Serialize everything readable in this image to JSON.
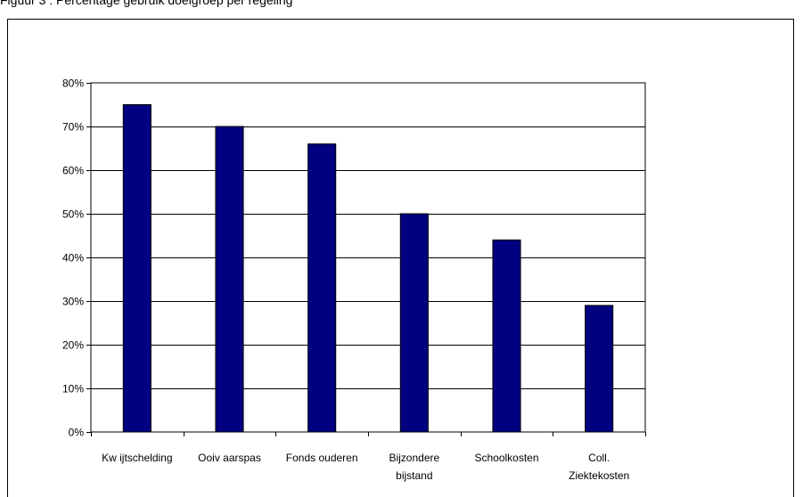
{
  "caption": "Figuur 3 : Percentage gebruik doelgroep per regeling",
  "chart_data": {
    "type": "bar",
    "title": "",
    "xlabel": "",
    "ylabel": "",
    "categories": [
      [
        "Kw ijtschelding"
      ],
      [
        "Ooiv aarspas"
      ],
      [
        "Fonds ouderen"
      ],
      [
        "Bijzondere",
        "bijstand"
      ],
      [
        "Schoolkosten"
      ],
      [
        "Coll.",
        "Ziektekosten"
      ]
    ],
    "values": [
      75,
      70,
      66,
      50,
      44,
      29
    ],
    "ylim": [
      0,
      80
    ],
    "yticks": [
      "0%",
      "10%",
      "20%",
      "30%",
      "40%",
      "50%",
      "60%",
      "70%",
      "80%"
    ],
    "grid": true,
    "legend": "none",
    "colors": {
      "bar_fill": "#000080",
      "bar_stroke": "#000000",
      "gridline": "#000000",
      "frame": "#000000"
    }
  }
}
